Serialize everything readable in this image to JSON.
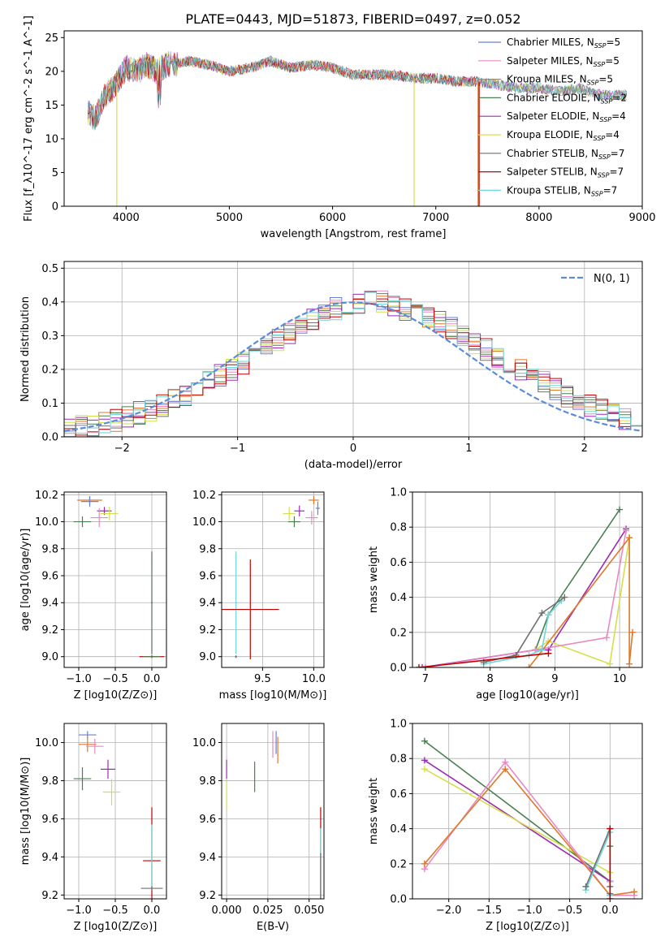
{
  "title": "PLATE=0443, MJD=51873, FIBERID=0497, z=0.052",
  "colors": {
    "blue": "#6a7fd6",
    "pink": "#e78ac3",
    "orange": "#e0782a",
    "darkgreen": "#4c7f50",
    "purple": "#9d2bb5",
    "lime": "#d4e04a",
    "gray": "#707070",
    "red": "#c00000",
    "cyan": "#6fd6dc",
    "gaussian": "#5b8bd9"
  },
  "chart_data": [
    {
      "id": "spectrum",
      "type": "line",
      "xlabel": "wavelength [Angstrom, rest frame]",
      "ylabel": "Flux [f_λ10^-17 erg cm^-2 s^-1 A^-1]",
      "xlim": [
        3400,
        9000
      ],
      "ylim": [
        0,
        26
      ],
      "xticks": [
        "4000",
        "5000",
        "6000",
        "7000",
        "8000",
        "9000"
      ],
      "yticks": [
        "0",
        "5",
        "10",
        "15",
        "20",
        "25"
      ],
      "legend_position": "upper-right",
      "legend": [
        {
          "base": "Chabrier MILES, N",
          "sub": "SSP",
          "suffix": "=5",
          "color": "blue"
        },
        {
          "base": "Salpeter MILES, N",
          "sub": "SSP",
          "suffix": "=5",
          "color": "pink"
        },
        {
          "base": "Kroupa MILES, N",
          "sub": "SSP",
          "suffix": "=5",
          "color": "orange"
        },
        {
          "base": "Chabrier ELODIE, N",
          "sub": "SSP",
          "suffix": "=2",
          "color": "darkgreen"
        },
        {
          "base": "Salpeter ELODIE, N",
          "sub": "SSP",
          "suffix": "=4",
          "color": "purple"
        },
        {
          "base": "Kroupa ELODIE, N",
          "sub": "SSP",
          "suffix": "=4",
          "color": "lime"
        },
        {
          "base": "Chabrier STELIB, N",
          "sub": "SSP",
          "suffix": "=7",
          "color": "gray"
        },
        {
          "base": "Salpeter STELIB, N",
          "sub": "SSP",
          "suffix": "=7",
          "color": "red"
        },
        {
          "base": "Kroupa STELIB, N",
          "sub": "SSP",
          "suffix": "=7",
          "color": "cyan"
        }
      ],
      "envelope": [
        [
          3630,
          14.0
        ],
        [
          3700,
          13.0
        ],
        [
          3800,
          16.5
        ],
        [
          3900,
          18.0
        ],
        [
          4000,
          20.5
        ],
        [
          4100,
          20.0
        ],
        [
          4200,
          21.0
        ],
        [
          4300,
          20.0
        ],
        [
          4400,
          21.0
        ],
        [
          4600,
          21.5
        ],
        [
          4800,
          21.0
        ],
        [
          5000,
          20.0
        ],
        [
          5200,
          20.5
        ],
        [
          5400,
          21.5
        ],
        [
          5600,
          20.5
        ],
        [
          5800,
          21.0
        ],
        [
          6000,
          20.5
        ],
        [
          6200,
          19.5
        ],
        [
          6400,
          19.5
        ],
        [
          6600,
          19.5
        ],
        [
          6800,
          19.0
        ],
        [
          7000,
          19.0
        ],
        [
          7200,
          18.5
        ],
        [
          7400,
          18.5
        ],
        [
          7600,
          18.0
        ],
        [
          7800,
          17.5
        ],
        [
          8000,
          17.5
        ],
        [
          8200,
          17.0
        ],
        [
          8400,
          17.5
        ],
        [
          8600,
          16.5
        ],
        [
          8800,
          16.5
        ]
      ],
      "drops": [
        {
          "color": "lime",
          "x": 3910,
          "y": 0
        },
        {
          "color": "lime",
          "x": 6790,
          "y": 0
        },
        {
          "color": "red",
          "x": 7420,
          "y": 0
        },
        {
          "color": "orange",
          "x": 7410,
          "y": 0
        }
      ]
    },
    {
      "id": "residual-histogram",
      "type": "step",
      "xlabel": "(data-model)/error",
      "ylabel": "Normed distribution",
      "xlim": [
        -2.5,
        2.5
      ],
      "ylim": [
        0,
        0.52
      ],
      "xticks": [
        "−2",
        "−1",
        "0",
        "1",
        "2"
      ],
      "yticks": [
        "0.0",
        "0.1",
        "0.2",
        "0.3",
        "0.4",
        "0.5"
      ],
      "legend": "N(0, 1)",
      "legend_position": "upper-right",
      "bin_width": 0.1,
      "base_values": [
        0.02,
        0.03,
        0.03,
        0.04,
        0.05,
        0.06,
        0.07,
        0.08,
        0.09,
        0.11,
        0.12,
        0.14,
        0.16,
        0.18,
        0.2,
        0.22,
        0.25,
        0.27,
        0.29,
        0.31,
        0.33,
        0.35,
        0.36,
        0.38,
        0.39,
        0.4,
        0.4,
        0.4,
        0.39,
        0.38,
        0.37,
        0.36,
        0.34,
        0.32,
        0.3,
        0.28,
        0.26,
        0.24,
        0.22,
        0.2,
        0.18,
        0.16,
        0.14,
        0.12,
        0.1,
        0.09,
        0.08,
        0.07,
        0.05,
        0.04
      ]
    },
    {
      "id": "z-vs-age",
      "type": "errorbar",
      "xlabel": "Z [log10(Z/Z⊙)]",
      "ylabel": "age [log10(age/yr)]",
      "xlim": [
        -1.2,
        0.2
      ],
      "ylim": [
        8.92,
        10.22
      ],
      "xticks": [
        "−1.0",
        "−0.5",
        "0.0"
      ],
      "yticks": [
        "9.0",
        "9.2",
        "9.4",
        "9.6",
        "9.8",
        "10.0",
        "10.2"
      ],
      "points": [
        {
          "color": "orange",
          "x": -0.85,
          "xerr": 0.17,
          "y": 10.16,
          "yerr": 0.03
        },
        {
          "color": "blue",
          "x": -0.85,
          "xerr": 0.12,
          "y": 10.15,
          "yerr": 0.04
        },
        {
          "color": "purple",
          "x": -0.65,
          "xerr": 0.1,
          "y": 10.08,
          "yerr": 0.03
        },
        {
          "color": "lime",
          "x": -0.58,
          "xerr": 0.12,
          "y": 10.06,
          "yerr": 0.05
        },
        {
          "color": "pink",
          "x": -0.72,
          "xerr": 0.12,
          "y": 10.03,
          "yerr": 0.07
        },
        {
          "color": "darkgreen",
          "x": -0.95,
          "xerr": 0.12,
          "y": 10.0,
          "yerr": 0.04
        },
        {
          "color": "cyan",
          "x": 0.0,
          "xerr": 0.01,
          "y": 9.4,
          "yerr": 0.38
        },
        {
          "color": "gray",
          "x": 0.0,
          "xerr": 0.01,
          "y": 9.4,
          "yerr": 0.38
        },
        {
          "color": "red",
          "x": 0.0,
          "xerr": 0.17,
          "y": 9.0,
          "yerr": 0.01
        },
        {
          "color": "darkgreen",
          "x": 0.0,
          "xerr": 0.12,
          "y": 9.0,
          "yerr": 0.01
        }
      ]
    },
    {
      "id": "mass-vs-age",
      "type": "errorbar",
      "xlabel": "mass [log10(M/M⊙)]",
      "ylabel": "",
      "xlim": [
        9.1,
        10.1
      ],
      "ylim": [
        8.92,
        10.22
      ],
      "xticks": [
        "9.5",
        "10.0"
      ],
      "yticks": [
        "9.0",
        "9.2",
        "9.4",
        "9.6",
        "9.8",
        "10.0",
        "10.2"
      ],
      "points": [
        {
          "color": "orange",
          "x": 10.0,
          "xerr": 0.05,
          "y": 10.16,
          "yerr": 0.03
        },
        {
          "color": "blue",
          "x": 10.04,
          "xerr": 0.02,
          "y": 10.1,
          "yerr": 0.05
        },
        {
          "color": "purple",
          "x": 9.86,
          "xerr": 0.05,
          "y": 10.08,
          "yerr": 0.04
        },
        {
          "color": "lime",
          "x": 9.76,
          "xerr": 0.06,
          "y": 10.06,
          "yerr": 0.05
        },
        {
          "color": "pink",
          "x": 9.98,
          "xerr": 0.06,
          "y": 10.03,
          "yerr": 0.05
        },
        {
          "color": "darkgreen",
          "x": 9.81,
          "xerr": 0.06,
          "y": 10.0,
          "yerr": 0.04
        },
        {
          "color": "cyan",
          "x": 9.24,
          "xerr": 0.01,
          "y": 9.4,
          "yerr": 0.38
        },
        {
          "color": "red",
          "x": 9.38,
          "xerr": 0.28,
          "y": 9.35,
          "yerr": 0.37
        },
        {
          "color": "gray",
          "x": 9.24,
          "xerr": 0.01,
          "y": 9.0,
          "yerr": 0.01
        }
      ]
    },
    {
      "id": "age-vs-weight",
      "type": "line",
      "xlabel": "age [log10(age/yr)]",
      "ylabel": "mass weight",
      "xlim": [
        6.8,
        10.35
      ],
      "ylim": [
        0,
        1.0
      ],
      "xticks": [
        "7",
        "8",
        "9",
        "10"
      ],
      "yticks": [
        "0.0",
        "0.2",
        "0.4",
        "0.6",
        "0.8",
        "1.0"
      ],
      "series": [
        {
          "color": "darkgreen",
          "x": [
            8.7,
            8.9,
            10.0
          ],
          "y": [
            0.1,
            0.3,
            0.9
          ]
        },
        {
          "color": "purple",
          "x": [
            6.95,
            8.7,
            8.9,
            10.1
          ],
          "y": [
            0.0,
            0.1,
            0.1,
            0.79
          ]
        },
        {
          "color": "lime",
          "x": [
            8.7,
            8.9,
            9.85,
            10.15
          ],
          "y": [
            0.1,
            0.15,
            0.02,
            0.74
          ]
        },
        {
          "color": "pink",
          "x": [
            7.0,
            8.7,
            9.8,
            10.1
          ],
          "y": [
            0.0,
            0.1,
            0.17,
            0.78
          ]
        },
        {
          "color": "orange",
          "x": [
            8.6,
            10.15,
            10.15,
            10.2
          ],
          "y": [
            0.0,
            0.74,
            0.02,
            0.2
          ]
        },
        {
          "color": "cyan",
          "x": [
            7.9,
            8.6,
            8.8,
            8.9,
            9.1
          ],
          "y": [
            0.02,
            0.07,
            0.1,
            0.3,
            0.38
          ]
        },
        {
          "color": "gray",
          "x": [
            7.9,
            8.4,
            8.8,
            9.15
          ],
          "y": [
            0.03,
            0.07,
            0.31,
            0.4
          ]
        },
        {
          "color": "red",
          "x": [
            6.9,
            8.9
          ],
          "y": [
            0.0,
            0.08
          ]
        }
      ]
    },
    {
      "id": "z-vs-mass",
      "type": "errorbar",
      "xlabel": "Z [log10(Z/Z⊙)]",
      "ylabel": "mass [log10(M/M⊙)]",
      "xlim": [
        -1.2,
        0.2
      ],
      "ylim": [
        9.18,
        10.1
      ],
      "xticks": [
        "−1.0",
        "−0.5",
        "0.0"
      ],
      "yticks": [
        "9.2",
        "9.4",
        "9.6",
        "9.8",
        "10.0"
      ],
      "points": [
        {
          "color": "blue",
          "x": -0.88,
          "xerr": 0.12,
          "y": 10.04,
          "yerr": 0.02
        },
        {
          "color": "orange",
          "x": -0.88,
          "xerr": 0.12,
          "y": 9.99,
          "yerr": 0.04
        },
        {
          "color": "pink",
          "x": -0.78,
          "xerr": 0.12,
          "y": 9.98,
          "yerr": 0.04
        },
        {
          "color": "purple",
          "x": -0.6,
          "xerr": 0.1,
          "y": 9.86,
          "yerr": 0.05
        },
        {
          "color": "darkgreen",
          "x": -0.95,
          "xerr": 0.12,
          "y": 9.81,
          "yerr": 0.06
        },
        {
          "color": "lime",
          "x": -0.55,
          "xerr": 0.12,
          "y": 9.74,
          "yerr": 0.07
        },
        {
          "color": "red",
          "x": 0.0,
          "xerr": 0.12,
          "y": 9.38,
          "yerr": 0.28
        },
        {
          "color": "cyan",
          "x": 0.0,
          "xerr": 0.01,
          "y": 9.4,
          "yerr": 0.17
        },
        {
          "color": "gray",
          "x": 0.0,
          "xerr": 0.15,
          "y": 9.235,
          "yerr": 0.01
        }
      ]
    },
    {
      "id": "ebv-vs-mass",
      "type": "errorbar",
      "xlabel": "E(B-V)",
      "ylabel": "",
      "xlim": [
        -0.003,
        0.059
      ],
      "ylim": [
        9.18,
        10.1
      ],
      "xticks": [
        "0.000",
        "0.025",
        "0.050"
      ],
      "yticks": [
        "9.2",
        "9.4",
        "9.6",
        "9.8",
        "10.0"
      ],
      "points": [
        {
          "color": "blue",
          "x": 0.03,
          "xerr": 0.0,
          "y": 10.0,
          "yerr": 0.06
        },
        {
          "color": "pink",
          "x": 0.028,
          "xerr": 0.0,
          "y": 9.99,
          "yerr": 0.07
        },
        {
          "color": "orange",
          "x": 0.031,
          "xerr": 0.0,
          "y": 9.96,
          "yerr": 0.07
        },
        {
          "color": "purple",
          "x": 0.0,
          "xerr": 0.0,
          "y": 9.86,
          "yerr": 0.05
        },
        {
          "color": "darkgreen",
          "x": 0.017,
          "xerr": 0.0,
          "y": 9.82,
          "yerr": 0.08
        },
        {
          "color": "lime",
          "x": 0.0,
          "xerr": 0.0,
          "y": 9.72,
          "yerr": 0.07
        },
        {
          "color": "red",
          "x": 0.057,
          "xerr": 0.0,
          "y": 9.38,
          "yerr": 0.28
        },
        {
          "color": "cyan",
          "x": 0.057,
          "xerr": 0.0,
          "y": 9.35,
          "yerr": 0.2
        },
        {
          "color": "gray",
          "x": 0.057,
          "xerr": 0.0,
          "y": 9.3,
          "yerr": 0.12
        }
      ]
    },
    {
      "id": "z-vs-weight",
      "type": "line",
      "xlabel": "Z [log10(Z/Z⊙)]",
      "ylabel": "mass weight",
      "xlim": [
        -2.45,
        0.4
      ],
      "ylim": [
        0,
        1.0
      ],
      "xticks": [
        "−2.0",
        "−1.5",
        "−1.0",
        "−0.5",
        "0.0"
      ],
      "yticks": [
        "0.0",
        "0.2",
        "0.4",
        "0.6",
        "0.8",
        "1.0"
      ],
      "series": [
        {
          "color": "darkgreen",
          "x": [
            -2.3,
            0.0,
            0.0
          ],
          "y": [
            0.9,
            0.1,
            0.3
          ]
        },
        {
          "color": "purple",
          "x": [
            -2.3,
            0.0,
            0.0
          ],
          "y": [
            0.79,
            0.1,
            0.1
          ]
        },
        {
          "color": "lime",
          "x": [
            -2.3,
            0.0,
            0.0
          ],
          "y": [
            0.74,
            0.15,
            0.02
          ]
        },
        {
          "color": "pink",
          "x": [
            -2.3,
            -1.3,
            0.0,
            0.3
          ],
          "y": [
            0.17,
            0.78,
            0.02,
            0.02
          ]
        },
        {
          "color": "orange",
          "x": [
            -2.3,
            -1.3,
            0.0,
            0.3
          ],
          "y": [
            0.2,
            0.74,
            0.02,
            0.04
          ]
        },
        {
          "color": "cyan",
          "x": [
            -0.3,
            0.0,
            0.0,
            0.0
          ],
          "y": [
            0.05,
            0.38,
            0.1,
            0.02
          ]
        },
        {
          "color": "gray",
          "x": [
            -0.3,
            0.0,
            0.0,
            0.0
          ],
          "y": [
            0.07,
            0.4,
            0.07,
            0.03
          ]
        },
        {
          "color": "red",
          "x": [
            0.0,
            0.0
          ],
          "y": [
            0.0,
            0.4
          ]
        }
      ]
    }
  ]
}
